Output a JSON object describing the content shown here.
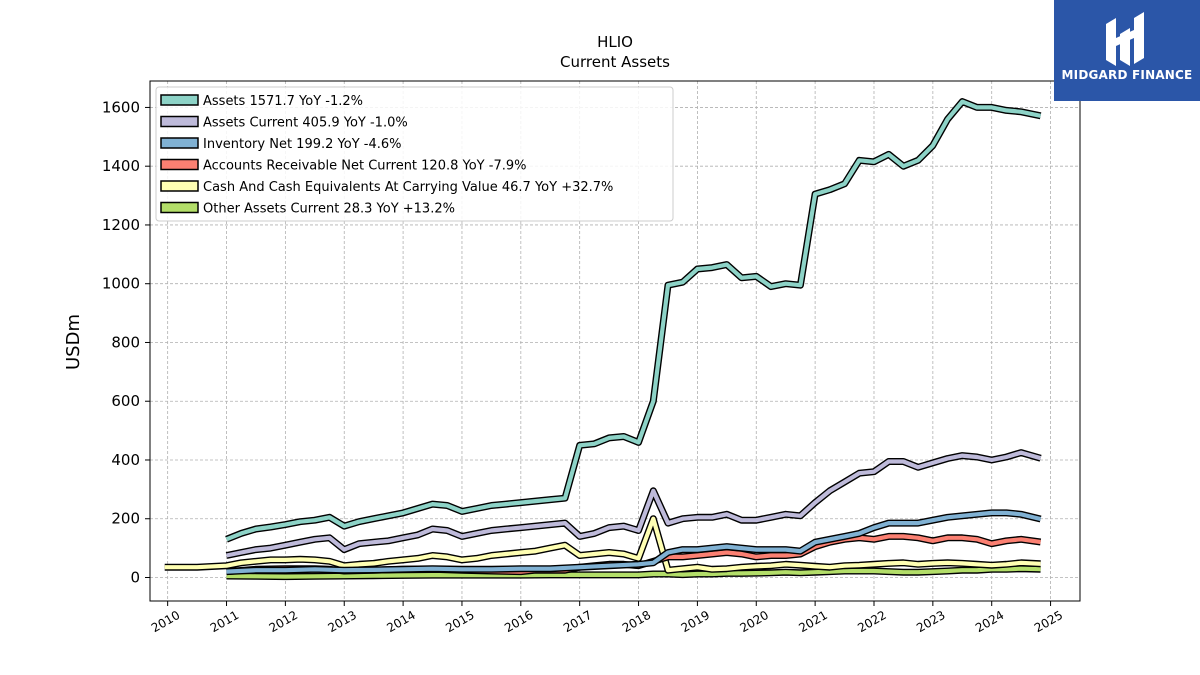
{
  "brand": {
    "name": "MIDGARD FINANCE",
    "bg_color": "#2b56a8"
  },
  "chart_data": {
    "type": "line",
    "title": "HLIO",
    "subtitle": "Current  Assets",
    "ylabel": "USDm",
    "xlabel": "",
    "xlim": [
      2009.7,
      2025.5
    ],
    "ylim": [
      -80,
      1690
    ],
    "x_ticks": [
      "2010",
      "2011",
      "2012",
      "2013",
      "2014",
      "2015",
      "2016",
      "2017",
      "2018",
      "2019",
      "2020",
      "2021",
      "2022",
      "2023",
      "2024",
      "2025"
    ],
    "y_ticks": [
      0,
      200,
      400,
      600,
      800,
      1000,
      1200,
      1400,
      1600
    ],
    "grid": true,
    "legend_position": "top-left",
    "series": [
      {
        "name": "Assets  1571.7 YoY -1.2%",
        "color": "#8dd3c7",
        "x": [
          2011.0,
          2011.25,
          2011.5,
          2011.75,
          2012.0,
          2012.25,
          2012.5,
          2012.75,
          2013.0,
          2013.25,
          2013.5,
          2013.75,
          2014.0,
          2014.25,
          2014.5,
          2014.75,
          2015.0,
          2015.25,
          2015.5,
          2015.75,
          2016.0,
          2016.25,
          2016.5,
          2016.75,
          2017.0,
          2017.25,
          2017.5,
          2017.75,
          2018.0,
          2018.25,
          2018.5,
          2018.75,
          2019.0,
          2019.25,
          2019.5,
          2019.75,
          2020.0,
          2020.25,
          2020.5,
          2020.75,
          2021.0,
          2021.25,
          2021.5,
          2021.75,
          2022.0,
          2022.25,
          2022.5,
          2022.75,
          2023.0,
          2023.25,
          2023.5,
          2023.75,
          2024.0,
          2024.25,
          2024.5,
          2024.83
        ],
        "values": [
          130,
          150,
          165,
          172,
          180,
          190,
          195,
          205,
          175,
          190,
          200,
          210,
          220,
          235,
          250,
          245,
          225,
          235,
          245,
          250,
          255,
          260,
          265,
          270,
          450,
          455,
          475,
          480,
          460,
          600,
          995,
          1005,
          1050,
          1055,
          1065,
          1020,
          1025,
          990,
          1000,
          995,
          1305,
          1320,
          1340,
          1420,
          1415,
          1440,
          1400,
          1420,
          1470,
          1560,
          1620,
          1600,
          1600,
          1590,
          1585,
          1571.7
        ]
      },
      {
        "name": "Assets Current  405.9 YoY -1.0%",
        "color": "#bebada",
        "x": [
          2011.0,
          2011.25,
          2011.5,
          2011.75,
          2012.0,
          2012.25,
          2012.5,
          2012.75,
          2013.0,
          2013.25,
          2013.5,
          2013.75,
          2014.0,
          2014.25,
          2014.5,
          2014.75,
          2015.0,
          2015.25,
          2015.5,
          2015.75,
          2016.0,
          2016.25,
          2016.5,
          2016.75,
          2017.0,
          2017.25,
          2017.5,
          2017.75,
          2018.0,
          2018.25,
          2018.5,
          2018.75,
          2019.0,
          2019.25,
          2019.5,
          2019.75,
          2020.0,
          2020.25,
          2020.5,
          2020.75,
          2021.0,
          2021.25,
          2021.5,
          2021.75,
          2022.0,
          2022.25,
          2022.5,
          2022.75,
          2023.0,
          2023.25,
          2023.5,
          2023.75,
          2024.0,
          2024.25,
          2024.5,
          2024.83
        ],
        "values": [
          75,
          85,
          95,
          100,
          110,
          120,
          130,
          135,
          95,
          115,
          120,
          125,
          135,
          145,
          165,
          160,
          140,
          150,
          160,
          165,
          170,
          175,
          180,
          185,
          140,
          150,
          170,
          175,
          160,
          295,
          185,
          200,
          205,
          205,
          215,
          195,
          195,
          205,
          215,
          210,
          255,
          295,
          325,
          355,
          360,
          395,
          395,
          375,
          390,
          405,
          415,
          410,
          400,
          410,
          425,
          405.9
        ]
      },
      {
        "name": "Inventory Net  199.2 YoY -4.6%",
        "color": "#80b1d3",
        "x": [
          2011.0,
          2011.5,
          2012.0,
          2012.5,
          2013.0,
          2013.5,
          2014.0,
          2014.5,
          2015.0,
          2015.5,
          2016.0,
          2016.5,
          2017.0,
          2017.5,
          2018.0,
          2018.25,
          2018.5,
          2018.75,
          2019.0,
          2019.25,
          2019.5,
          2019.75,
          2020.0,
          2020.25,
          2020.5,
          2020.75,
          2021.0,
          2021.25,
          2021.5,
          2021.75,
          2022.0,
          2022.25,
          2022.5,
          2022.75,
          2023.0,
          2023.25,
          2023.5,
          2023.75,
          2024.0,
          2024.25,
          2024.5,
          2024.83
        ],
        "values": [
          20,
          25,
          25,
          28,
          25,
          26,
          28,
          30,
          28,
          28,
          30,
          30,
          35,
          40,
          45,
          50,
          85,
          95,
          95,
          100,
          105,
          100,
          95,
          95,
          95,
          90,
          120,
          130,
          140,
          150,
          170,
          185,
          185,
          185,
          195,
          205,
          210,
          215,
          220,
          220,
          215,
          199.2
        ]
      },
      {
        "name": "Accounts Receivable Net Current  120.8 YoY -7.9%",
        "color": "#fb8072",
        "x": [
          2011.0,
          2011.5,
          2012.0,
          2012.5,
          2012.75,
          2013.0,
          2013.5,
          2014.0,
          2014.5,
          2015.0,
          2015.5,
          2016.0,
          2016.25,
          2016.5,
          2016.75,
          2017.0,
          2017.25,
          2017.5,
          2017.75,
          2018.0,
          2018.25,
          2018.5,
          2018.75,
          2019.0,
          2019.25,
          2019.5,
          2019.75,
          2020.0,
          2020.25,
          2020.5,
          2020.75,
          2021.0,
          2021.25,
          2021.5,
          2021.75,
          2022.0,
          2022.25,
          2022.5,
          2022.75,
          2023.0,
          2023.25,
          2023.5,
          2023.75,
          2024.0,
          2024.25,
          2024.5,
          2024.83
        ],
        "values": [
          20,
          28,
          30,
          30,
          28,
          22,
          25,
          28,
          28,
          25,
          22,
          20,
          25,
          25,
          25,
          35,
          40,
          45,
          45,
          40,
          55,
          70,
          70,
          75,
          80,
          85,
          80,
          70,
          75,
          75,
          80,
          105,
          120,
          130,
          135,
          130,
          140,
          140,
          135,
          125,
          135,
          135,
          130,
          115,
          125,
          130,
          120.8
        ]
      },
      {
        "name": "Cash And Cash Equivalents At Carrying Value  46.7 YoY +32.7%",
        "color": "#ffffb3",
        "x": [
          2009.95,
          2010.5,
          2011.0,
          2011.25,
          2011.5,
          2011.75,
          2012.0,
          2012.25,
          2012.5,
          2012.75,
          2013.0,
          2013.25,
          2013.5,
          2013.75,
          2014.0,
          2014.25,
          2014.5,
          2014.75,
          2015.0,
          2015.25,
          2015.5,
          2015.75,
          2016.0,
          2016.25,
          2016.5,
          2016.75,
          2017.0,
          2017.25,
          2017.5,
          2017.75,
          2018.0,
          2018.25,
          2018.5,
          2018.75,
          2019.0,
          2019.25,
          2019.5,
          2019.75,
          2020.0,
          2020.25,
          2020.5,
          2020.75,
          2021.0,
          2021.25,
          2021.5,
          2021.75,
          2022.0,
          2022.25,
          2022.5,
          2022.75,
          2023.0,
          2023.25,
          2023.5,
          2023.75,
          2024.0,
          2024.25,
          2024.5,
          2024.83
        ],
        "values": [
          35,
          35,
          40,
          50,
          55,
          60,
          60,
          62,
          60,
          55,
          40,
          45,
          48,
          55,
          60,
          65,
          75,
          70,
          60,
          65,
          75,
          80,
          85,
          90,
          100,
          110,
          75,
          80,
          85,
          80,
          65,
          200,
          25,
          30,
          35,
          28,
          30,
          35,
          38,
          40,
          45,
          42,
          38,
          35,
          40,
          42,
          45,
          48,
          50,
          45,
          48,
          50,
          48,
          45,
          42,
          45,
          50,
          46.7
        ]
      },
      {
        "name": "Other Assets Current  28.3 YoY +13.2%",
        "color": "#b3de69",
        "x": [
          2011.0,
          2011.5,
          2012.0,
          2012.5,
          2013.0,
          2013.5,
          2014.0,
          2014.5,
          2015.0,
          2015.5,
          2016.0,
          2016.5,
          2017.0,
          2017.5,
          2018.0,
          2018.25,
          2018.5,
          2018.75,
          2019.0,
          2019.25,
          2019.5,
          2019.75,
          2020.0,
          2020.25,
          2020.5,
          2020.75,
          2021.0,
          2021.25,
          2021.5,
          2021.75,
          2022.0,
          2022.25,
          2022.5,
          2022.75,
          2023.0,
          2023.25,
          2023.5,
          2023.75,
          2024.0,
          2024.25,
          2024.5,
          2024.83
        ],
        "values": [
          5,
          4,
          3,
          4,
          5,
          6,
          7,
          8,
          8,
          8,
          8,
          9,
          9,
          9,
          9,
          12,
          12,
          10,
          12,
          12,
          14,
          14,
          15,
          16,
          18,
          16,
          18,
          20,
          22,
          22,
          22,
          20,
          18,
          18,
          20,
          22,
          25,
          25,
          28,
          28,
          30,
          28.3
        ]
      }
    ]
  }
}
